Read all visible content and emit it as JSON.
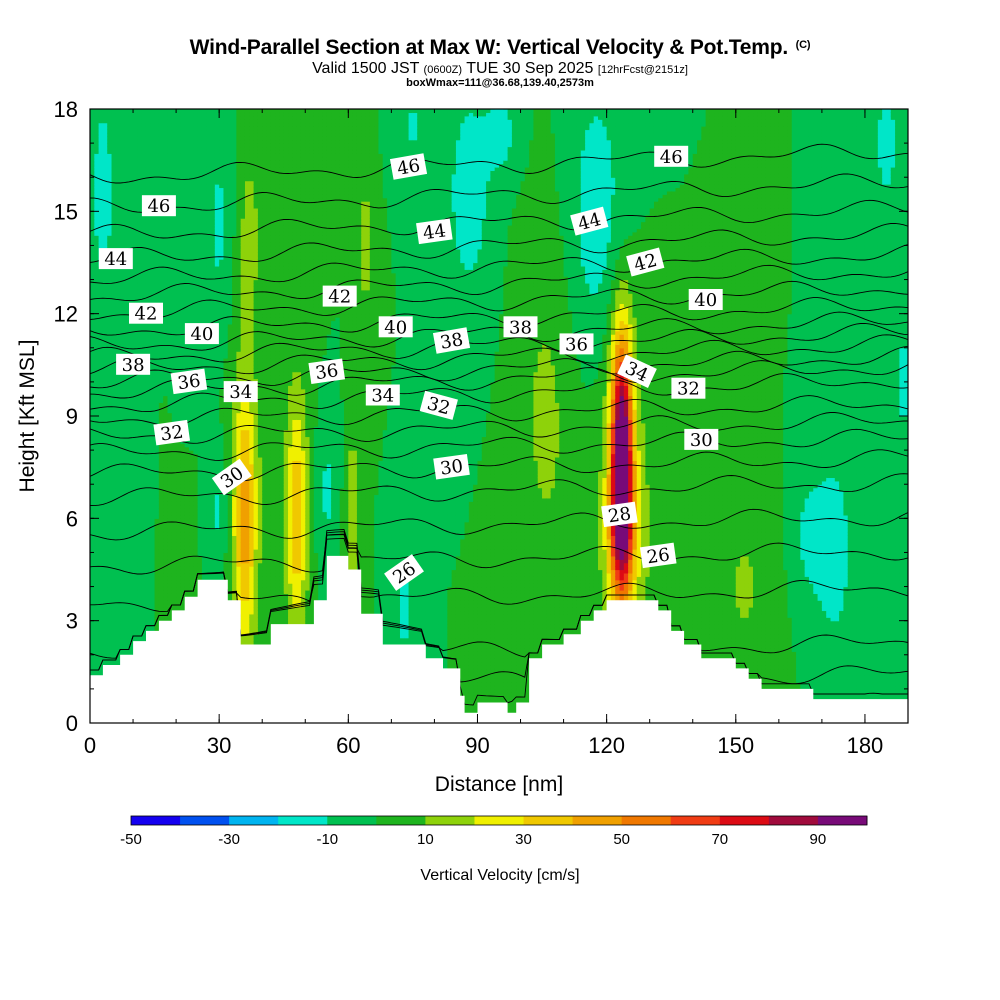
{
  "title": {
    "main": "Wind-Parallel Section at Max W: Vertical Velocity & Pot.Temp.",
    "copyright": "(C)",
    "valid_a": "Valid 1500 JST",
    "valid_z": "(0600Z)",
    "valid_b": "TUE 30 Sep 2025",
    "valid_fcst": "[12hrFcst@2151z]",
    "box": "boxWmax=111@36.68,139.40,2573m"
  },
  "chart_data": {
    "type": "heatmap",
    "title": "Wind-Parallel Section at Max W: Vertical Velocity & Pot.Temp.",
    "xlabel": "Distance [nm]",
    "ylabel": "Height [Kft MSL]",
    "xlim": [
      0,
      190
    ],
    "ylim": [
      0,
      18
    ],
    "xticks": [
      "0",
      "30",
      "60",
      "90",
      "120",
      "150",
      "180"
    ],
    "yticks": [
      "0",
      "3",
      "6",
      "9",
      "12",
      "15",
      "18"
    ],
    "colorbar": {
      "label": "Vertical Velocity [cm/s]",
      "ticks": [
        "-50",
        "-30",
        "-10",
        "10",
        "30",
        "50",
        "70",
        "90"
      ],
      "bounds": [
        -50,
        100
      ],
      "step": 10,
      "colors": [
        "#1400f0",
        "#0050f0",
        "#00b4f0",
        "#00e6c8",
        "#00c050",
        "#1eb41e",
        "#8ed20a",
        "#f0f000",
        "#f0c800",
        "#f0a000",
        "#f07800",
        "#f03c14",
        "#dc0a14",
        "#a00a3c",
        "#780a78"
      ]
    },
    "background_value": 0,
    "w_features": [
      {
        "x": 3,
        "y": 15.5,
        "sx": 2.5,
        "sy": 3,
        "w": -13
      },
      {
        "x": 30,
        "y": 14.5,
        "sx": 2.5,
        "sy": 2.5,
        "w": -12
      },
      {
        "x": 88,
        "y": 15.5,
        "sx": 4,
        "sy": 2.5,
        "w": -15
      },
      {
        "x": 96,
        "y": 17.3,
        "sx": 3,
        "sy": 1,
        "w": -12
      },
      {
        "x": 118,
        "y": 14.8,
        "sx": 5,
        "sy": 3,
        "w": -17
      },
      {
        "x": 185,
        "y": 17,
        "sx": 3,
        "sy": 2,
        "w": -12
      },
      {
        "x": 75,
        "y": 17.5,
        "sx": 3,
        "sy": 1,
        "w": -11
      },
      {
        "x": 36,
        "y": 6,
        "sx": 1.8,
        "sy": 2.5,
        "w": 38
      },
      {
        "x": 36,
        "y": 7,
        "sx": 3.5,
        "sy": 4.5,
        "w": 9
      },
      {
        "x": 48,
        "y": 6,
        "sx": 1.6,
        "sy": 2.2,
        "w": 32
      },
      {
        "x": 48,
        "y": 7,
        "sx": 3,
        "sy": 4,
        "w": 8
      },
      {
        "x": 61,
        "y": 6,
        "sx": 1.3,
        "sy": 2,
        "w": 18
      },
      {
        "x": 123.5,
        "y": 8,
        "sx": 1.7,
        "sy": 2.4,
        "w": 95
      },
      {
        "x": 123.5,
        "y": 5.6,
        "sx": 2.2,
        "sy": 1.5,
        "w": 42
      },
      {
        "x": 123.5,
        "y": 7.5,
        "sx": 4,
        "sy": 4.5,
        "w": 14
      },
      {
        "x": 37,
        "y": 14.5,
        "sx": 2,
        "sy": 2,
        "w": 12
      },
      {
        "x": 64,
        "y": 14,
        "sx": 1.5,
        "sy": 2,
        "w": 13
      },
      {
        "x": 106,
        "y": 9,
        "sx": 5,
        "sy": 4,
        "w": 12
      },
      {
        "x": 152,
        "y": 4,
        "sx": 5,
        "sy": 2,
        "w": 11
      },
      {
        "x": 128,
        "y": 5,
        "sx": 6,
        "sy": 3,
        "w": 6
      },
      {
        "x": 30,
        "y": 6.2,
        "sx": 1.5,
        "sy": 1.3,
        "w": -13
      },
      {
        "x": 55,
        "y": 6.8,
        "sx": 2,
        "sy": 1.6,
        "w": -12
      },
      {
        "x": 73,
        "y": 3.5,
        "sx": 2,
        "sy": 1.5,
        "w": -13
      },
      {
        "x": 173,
        "y": 5,
        "sx": 3,
        "sy": 2,
        "w": -16
      },
      {
        "x": 167,
        "y": 5.5,
        "sx": 3,
        "sy": 1.5,
        "w": -12
      },
      {
        "x": 189,
        "y": 10,
        "sx": 1.5,
        "sy": 1.5,
        "w": -13
      }
    ],
    "terrain": [
      [
        0,
        1.4
      ],
      [
        3,
        1.4
      ],
      [
        3,
        1.7
      ],
      [
        7,
        1.7
      ],
      [
        7,
        2
      ],
      [
        10,
        2
      ],
      [
        10,
        2.4
      ],
      [
        13,
        2.4
      ],
      [
        13,
        2.7
      ],
      [
        16,
        2.7
      ],
      [
        16,
        3
      ],
      [
        19,
        3
      ],
      [
        19,
        3.3
      ],
      [
        22,
        3.3
      ],
      [
        22,
        3.7
      ],
      [
        25,
        3.7
      ],
      [
        25,
        4.2
      ],
      [
        32,
        4.2
      ],
      [
        32,
        3.6
      ],
      [
        35,
        3.6
      ],
      [
        35,
        2.3
      ],
      [
        42,
        2.3
      ],
      [
        42,
        2.9
      ],
      [
        52,
        2.9
      ],
      [
        52,
        3.6
      ],
      [
        55,
        3.6
      ],
      [
        55,
        4.9
      ],
      [
        60,
        4.9
      ],
      [
        60,
        4.5
      ],
      [
        63,
        4.5
      ],
      [
        63,
        3.2
      ],
      [
        68,
        3.2
      ],
      [
        68,
        2.3
      ],
      [
        78,
        2.3
      ],
      [
        78,
        1.9
      ],
      [
        82,
        1.9
      ],
      [
        82,
        1.6
      ],
      [
        86,
        1.6
      ],
      [
        86,
        0.8
      ],
      [
        87,
        0.8
      ],
      [
        87,
        0.3
      ],
      [
        90,
        0.3
      ],
      [
        90,
        0.6
      ],
      [
        97,
        0.6
      ],
      [
        97,
        0.3
      ],
      [
        99,
        0.3
      ],
      [
        99,
        0.6
      ],
      [
        102,
        0.6
      ],
      [
        102,
        1.9
      ],
      [
        105,
        1.9
      ],
      [
        105,
        2.3
      ],
      [
        110,
        2.3
      ],
      [
        110,
        2.6
      ],
      [
        114,
        2.6
      ],
      [
        114,
        3
      ],
      [
        117,
        3
      ],
      [
        117,
        3.3
      ],
      [
        120,
        3.3
      ],
      [
        120,
        3.6
      ],
      [
        132,
        3.6
      ],
      [
        132,
        3.3
      ],
      [
        135,
        3.3
      ],
      [
        135,
        2.7
      ],
      [
        138,
        2.7
      ],
      [
        138,
        2.3
      ],
      [
        142,
        2.3
      ],
      [
        142,
        1.9
      ],
      [
        150,
        1.9
      ],
      [
        150,
        1.6
      ],
      [
        153,
        1.6
      ],
      [
        153,
        1.3
      ],
      [
        156,
        1.3
      ],
      [
        156,
        1
      ],
      [
        168,
        1
      ],
      [
        168,
        0.7
      ],
      [
        190,
        0.7
      ]
    ],
    "theta_contours": {
      "levels_K": [
        23,
        24,
        25,
        26,
        27,
        28,
        29,
        30,
        31,
        32,
        33,
        34,
        35,
        36,
        37,
        38,
        39,
        40,
        41,
        42,
        43,
        44,
        45,
        46,
        47
      ],
      "base_heights_kft": [
        0.2,
        1.0,
        1.9,
        3.5,
        4.6,
        5.6,
        6.6,
        7.3,
        7.9,
        8.4,
        8.9,
        9.3,
        9.7,
        10.0,
        10.35,
        10.7,
        11.05,
        11.5,
        12.0,
        12.5,
        13.0,
        13.6,
        14.3,
        15.1,
        16.0
      ]
    },
    "contour_labels": [
      {
        "text": "46",
        "x": 16,
        "y": 15.15,
        "rot": 0
      },
      {
        "text": "46",
        "x": 74,
        "y": 16.3,
        "rot": -10
      },
      {
        "text": "46",
        "x": 135,
        "y": 16.6,
        "rot": 0
      },
      {
        "text": "44",
        "x": 6,
        "y": 13.6,
        "rot": 0
      },
      {
        "text": "44",
        "x": 80,
        "y": 14.4,
        "rot": -8
      },
      {
        "text": "44",
        "x": 116,
        "y": 14.7,
        "rot": -15
      },
      {
        "text": "42",
        "x": 13,
        "y": 12.0,
        "rot": 0
      },
      {
        "text": "42",
        "x": 58,
        "y": 12.5,
        "rot": 0
      },
      {
        "text": "42",
        "x": 129,
        "y": 13.5,
        "rot": -15
      },
      {
        "text": "40",
        "x": 26,
        "y": 11.4,
        "rot": 0
      },
      {
        "text": "40",
        "x": 71,
        "y": 11.6,
        "rot": 0
      },
      {
        "text": "40",
        "x": 143,
        "y": 12.4,
        "rot": 0
      },
      {
        "text": "38",
        "x": 10,
        "y": 10.5,
        "rot": 0
      },
      {
        "text": "38",
        "x": 84,
        "y": 11.2,
        "rot": -10
      },
      {
        "text": "38",
        "x": 100,
        "y": 11.6,
        "rot": 0
      },
      {
        "text": "36",
        "x": 23,
        "y": 10.0,
        "rot": -8
      },
      {
        "text": "36",
        "x": 55,
        "y": 10.3,
        "rot": -8
      },
      {
        "text": "36",
        "x": 113,
        "y": 11.1,
        "rot": 0
      },
      {
        "text": "34",
        "x": 35,
        "y": 9.7,
        "rot": 0
      },
      {
        "text": "34",
        "x": 68,
        "y": 9.6,
        "rot": 0
      },
      {
        "text": "34",
        "x": 127,
        "y": 10.3,
        "rot": 25
      },
      {
        "text": "32",
        "x": 19,
        "y": 8.5,
        "rot": -8
      },
      {
        "text": "32",
        "x": 81,
        "y": 9.3,
        "rot": 15
      },
      {
        "text": "32",
        "x": 139,
        "y": 9.8,
        "rot": 0
      },
      {
        "text": "30",
        "x": 33,
        "y": 7.2,
        "rot": -35
      },
      {
        "text": "30",
        "x": 84,
        "y": 7.5,
        "rot": -8
      },
      {
        "text": "30",
        "x": 142,
        "y": 8.3,
        "rot": 0
      },
      {
        "text": "28",
        "x": 123,
        "y": 6.1,
        "rot": -8
      },
      {
        "text": "26",
        "x": 73,
        "y": 4.4,
        "rot": -35
      },
      {
        "text": "26",
        "x": 132,
        "y": 4.9,
        "rot": -8
      }
    ]
  }
}
